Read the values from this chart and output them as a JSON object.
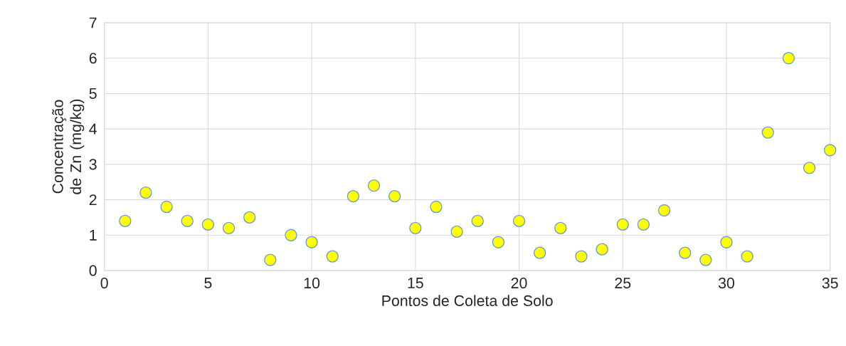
{
  "chart_data": {
    "type": "scatter",
    "xlabel": "Pontos de Coleta de Solo",
    "ylabel": "Concentração de Zn (mg/kg)",
    "x": [
      1,
      2,
      3,
      4,
      5,
      6,
      7,
      8,
      9,
      10,
      11,
      12,
      13,
      14,
      15,
      16,
      17,
      18,
      19,
      20,
      21,
      22,
      23,
      24,
      25,
      26,
      27,
      28,
      29,
      30,
      31,
      32,
      33,
      34,
      35
    ],
    "values": [
      1.4,
      2.2,
      1.8,
      1.4,
      1.3,
      1.2,
      1.5,
      0.3,
      1.0,
      0.8,
      0.4,
      2.1,
      2.4,
      2.1,
      1.2,
      1.8,
      1.1,
      1.4,
      0.8,
      1.4,
      0.5,
      1.2,
      0.4,
      0.6,
      1.3,
      1.3,
      1.7,
      0.5,
      0.3,
      0.8,
      0.4,
      3.9,
      6.0,
      2.9,
      3.4
    ],
    "color": "#ffff00",
    "marker": "circle",
    "xlim": [
      0,
      35
    ],
    "ylim": [
      0,
      7
    ],
    "xticks": [
      0,
      5,
      10,
      15,
      20,
      25,
      30,
      35
    ],
    "yticks": [
      0,
      1,
      2,
      3,
      4,
      5,
      6,
      7
    ],
    "grid": true
  }
}
